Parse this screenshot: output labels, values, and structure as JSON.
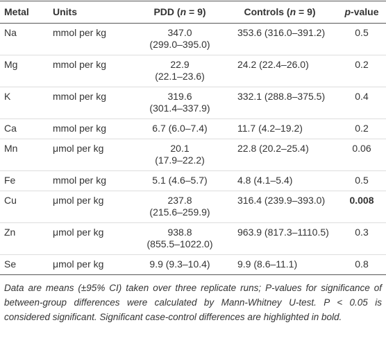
{
  "table": {
    "header": [
      [
        "Metal"
      ],
      [
        "Units"
      ],
      [
        "PDD (",
        "n",
        " = 9)"
      ],
      [
        "Controls (",
        "n",
        " = 9)"
      ],
      [
        "p",
        "-value"
      ]
    ],
    "rows": [
      {
        "cells": [
          [
            "Na"
          ],
          [
            "mmol per kg"
          ],
          [
            "347.0",
            "(299.0–395.0)"
          ],
          [
            "353.6 (316.0–391.2)"
          ],
          [
            "0.5"
          ]
        ],
        "bold_p": false
      },
      {
        "cells": [
          [
            "Mg"
          ],
          [
            "mmol per kg"
          ],
          [
            "22.9",
            "(22.1–23.6)"
          ],
          [
            "24.2 (22.4–26.0)"
          ],
          [
            "0.2"
          ]
        ],
        "bold_p": false
      },
      {
        "cells": [
          [
            "K"
          ],
          [
            "mmol per kg"
          ],
          [
            "319.6",
            "(301.4–337.9)"
          ],
          [
            "332.1 (288.8–375.5)"
          ],
          [
            "0.4"
          ]
        ],
        "bold_p": false
      },
      {
        "cells": [
          [
            "Ca"
          ],
          [
            "mmol per kg"
          ],
          [
            "6.7 (6.0–7.4)"
          ],
          [
            "11.7 (4.2–19.2)"
          ],
          [
            "0.2"
          ]
        ],
        "bold_p": false
      },
      {
        "cells": [
          [
            "Mn"
          ],
          [
            "μmol per kg"
          ],
          [
            "20.1",
            "(17.9–22.2)"
          ],
          [
            "22.8 (20.2–25.4)"
          ],
          [
            "0.06"
          ]
        ],
        "bold_p": false
      },
      {
        "cells": [
          [
            "Fe"
          ],
          [
            "mmol per kg"
          ],
          [
            "5.1 (4.6–5.7)"
          ],
          [
            "4.8 (4.1–5.4)"
          ],
          [
            "0.5"
          ]
        ],
        "bold_p": false
      },
      {
        "cells": [
          [
            "Cu"
          ],
          [
            "μmol per kg"
          ],
          [
            "237.8",
            "(215.6–259.9)"
          ],
          [
            "316.4 (239.9–393.0)"
          ],
          [
            "0.008"
          ]
        ],
        "bold_p": true
      },
      {
        "cells": [
          [
            "Zn"
          ],
          [
            "μmol per kg"
          ],
          [
            "938.8",
            "(855.5–1022.0)"
          ],
          [
            "963.9 (817.3–1110.5)"
          ],
          [
            "0.3"
          ]
        ],
        "bold_p": false
      },
      {
        "cells": [
          [
            "Se"
          ],
          [
            "μmol per kg"
          ],
          [
            "9.9 (9.3–10.4)"
          ],
          [
            "9.9 (8.6–11.1)"
          ],
          [
            "0.8"
          ]
        ],
        "bold_p": false
      }
    ],
    "footnote": "Data are means (±95% CI) taken over three replicate runs; P-values for significance of between-group differences were calculated by Mann-Whitney U-test. P < 0.05 is considered significant. Significant case-control differences are highlighted in bold."
  }
}
